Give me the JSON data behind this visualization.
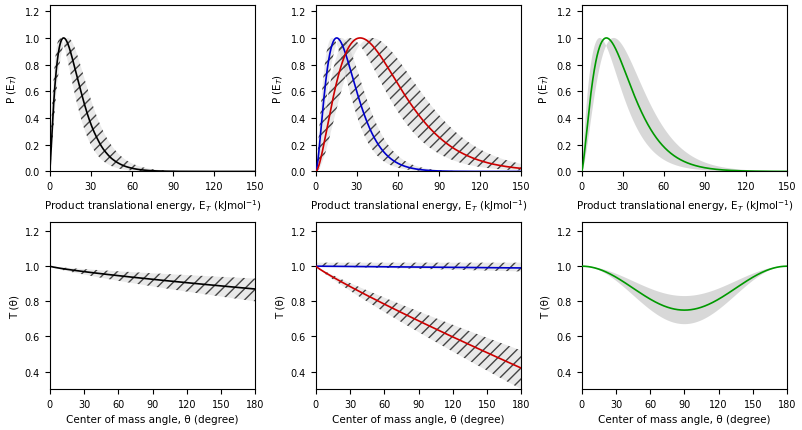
{
  "fig_width": 8.02,
  "fig_height": 4.31,
  "dpi": 100,
  "background_color": "#ffffff",
  "et_xlim": [
    0,
    150
  ],
  "et_ylim": [
    0,
    1.25
  ],
  "et_xticks": [
    0,
    30,
    60,
    90,
    120,
    150
  ],
  "et_yticks": [
    0.0,
    0.2,
    0.4,
    0.6,
    0.8,
    1.0,
    1.2
  ],
  "et_xlabel": "Product translational energy, E$_T$ (kJmol$^{-1}$)",
  "et_ylabel": "P (E$_T$)",
  "ang_xlim": [
    0,
    180
  ],
  "ang_ylim": [
    0.3,
    1.25
  ],
  "ang_xticks": [
    0,
    30,
    60,
    90,
    120,
    150,
    180
  ],
  "ang_yticks": [
    0.4,
    0.6,
    0.8,
    1.0,
    1.2
  ],
  "ang_xlabel": "Center of mass angle, θ (degree)",
  "ang_ylabel": "T (θ)",
  "gray_fill_color": "#aaaaaa",
  "col1_line_color": "#000000",
  "col2_blue_color": "#0000cc",
  "col2_red_color": "#cc0000",
  "col3_green_color": "#009900",
  "line_width": 1.2,
  "tick_fontsize": 7,
  "label_fontsize": 7.5
}
